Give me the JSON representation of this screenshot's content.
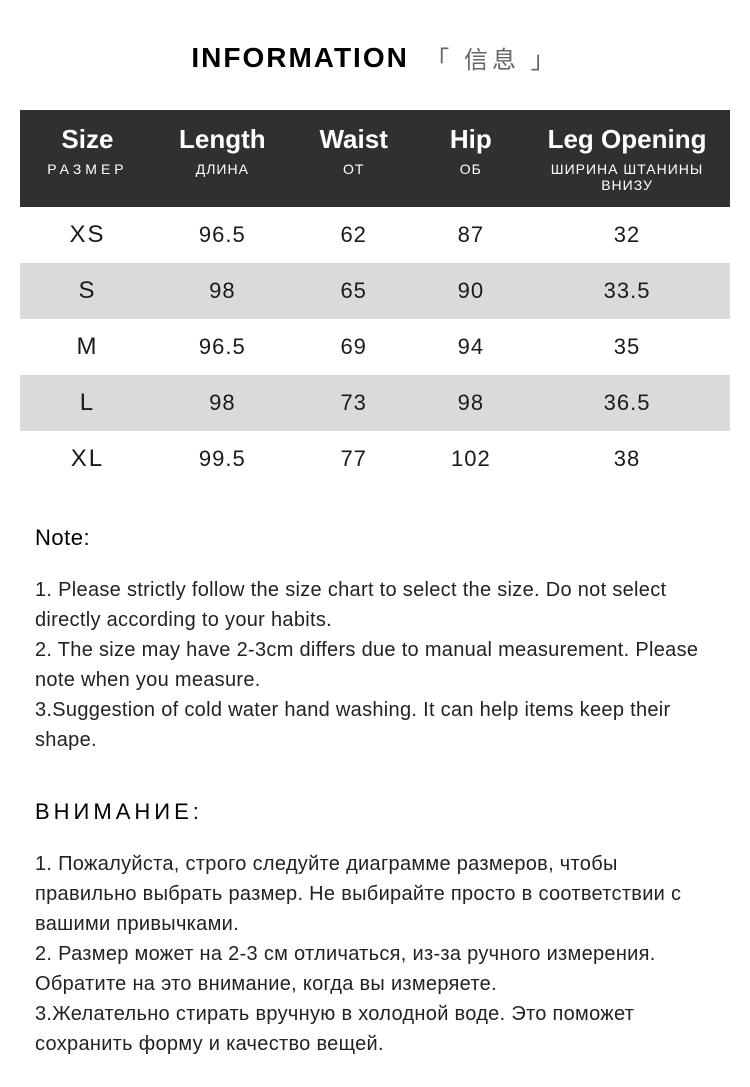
{
  "header": {
    "title": "INFORMATION",
    "subtitle": "「 信息 」"
  },
  "table": {
    "header_bg": "#2f3131",
    "header_color": "#ffffff",
    "row_even_bg": "#dadada",
    "row_odd_bg": "#ffffff",
    "columns": [
      {
        "main": "Size",
        "sub": "РАЗМЕР",
        "key": "size"
      },
      {
        "main": "Length",
        "sub": "ДЛИНА",
        "key": "length"
      },
      {
        "main": "Waist",
        "sub": "ОТ",
        "key": "waist"
      },
      {
        "main": "Hip",
        "sub": "ОБ",
        "key": "hip"
      },
      {
        "main": "Leg Opening",
        "sub": "ШИРИНА ШТАНИНЫ ВНИЗУ",
        "key": "leg"
      }
    ],
    "rows": [
      {
        "size": "XS",
        "length": "96.5",
        "waist": "62",
        "hip": "87",
        "leg": "32"
      },
      {
        "size": "S",
        "length": "98",
        "waist": "65",
        "hip": "90",
        "leg": "33.5"
      },
      {
        "size": "M",
        "length": "96.5",
        "waist": "69",
        "hip": "94",
        "leg": "35"
      },
      {
        "size": "L",
        "length": "98",
        "waist": "73",
        "hip": "98",
        "leg": "36.5"
      },
      {
        "size": "XL",
        "length": "99.5",
        "waist": "77",
        "hip": "102",
        "leg": "38"
      }
    ]
  },
  "notes_en": {
    "heading": "Note:",
    "lines": [
      "1. Please strictly follow the size chart  to select the size. Do not select directly according to your habits.",
      "2. The size may have 2-3cm differs due to manual measurement. Please note when you measure.",
      "3.Suggestion of cold water hand washing. It can help items keep their shape."
    ]
  },
  "notes_ru": {
    "heading": "ВНИМАНИЕ:",
    "lines": [
      "1. Пожалуйста, строго следуйте диаграмме размеров, чтобы правильно выбрать размер. Не выбирайте просто в соответствии с вашими привычками.",
      "2. Размер может на 2-3 см отличаться, из-за ручного измерения. Обратите на это внимание, когда вы измеряете.",
      "3.Желательно стирать вручную в холодной воде. Это поможет сохранить форму и качество вещей."
    ]
  }
}
